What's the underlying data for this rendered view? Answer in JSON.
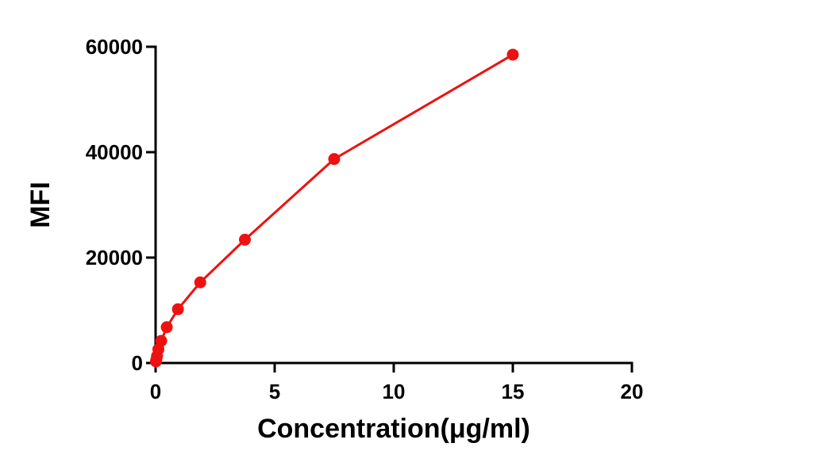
{
  "chart_data": {
    "type": "line",
    "title": "",
    "xlabel": "Concentration(μg/ml)",
    "ylabel": "MFI",
    "xlim": [
      0,
      20
    ],
    "ylim": [
      0,
      60000
    ],
    "x_ticks": [
      0,
      5,
      10,
      15,
      20
    ],
    "y_ticks": [
      0,
      20000,
      40000,
      60000
    ],
    "x_tick_labels": [
      "0",
      "5",
      "10",
      "15",
      "20"
    ],
    "y_tick_labels": [
      "0",
      "20000",
      "40000",
      "60000"
    ],
    "grid": false,
    "legend": "none",
    "series": [
      {
        "color": "#ee1111",
        "marker": "circle",
        "x": [
          0.015,
          0.029,
          0.059,
          0.117,
          0.234,
          0.469,
          0.938,
          1.875,
          3.75,
          7.5,
          15
        ],
        "y": [
          300,
          600,
          1300,
          2600,
          4200,
          6800,
          10200,
          15300,
          23400,
          38700,
          58500
        ]
      }
    ]
  }
}
